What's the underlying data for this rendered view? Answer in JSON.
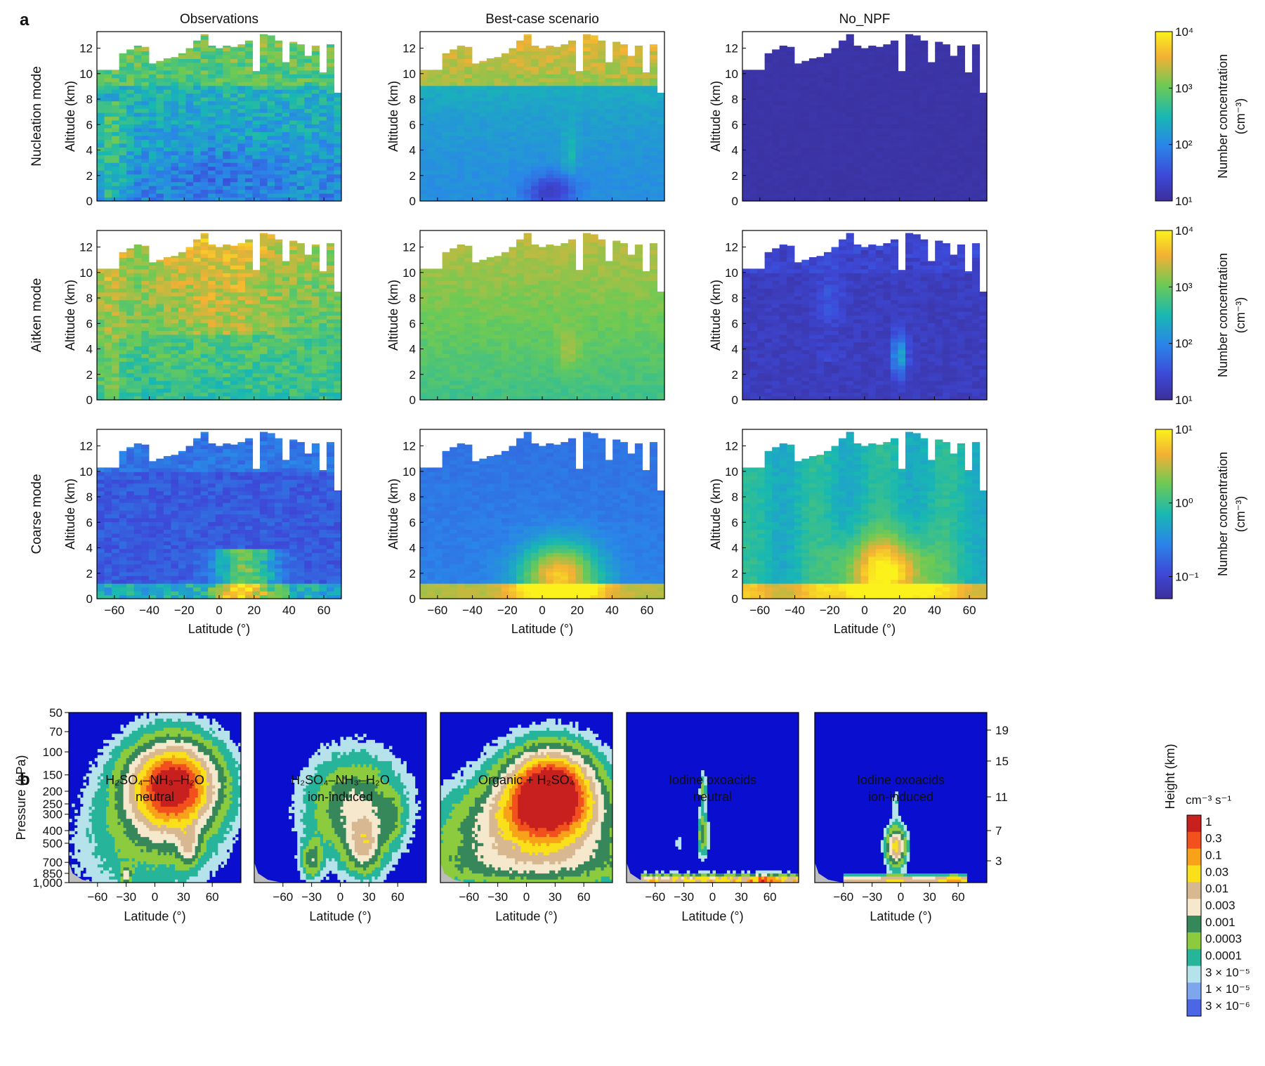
{
  "panel_a": {
    "label": "a",
    "column_titles": [
      "Observations",
      "Best-case scenario",
      "No_NPF"
    ],
    "row_titles": [
      "Nucleation mode",
      "Aitken mode",
      "Coarse mode"
    ],
    "ylabel": "Altitude (km)",
    "xlabel": "Latitude (°)",
    "colorbar_label": "Number concentration",
    "colorbar_unit": "(cm⁻³)"
  },
  "panel_b": {
    "label": "b",
    "titles": [
      [
        "H₂SO₄–NH₃–H₂O",
        "neutral"
      ],
      [
        "H₂SO₄–NH₃–H₂O",
        "ion-induced"
      ],
      [
        "Organic + H₂SO₄",
        ""
      ],
      [
        "Iodine oxoacids",
        "neutral"
      ],
      [
        "Iodine oxoacids",
        "ion-induced"
      ]
    ],
    "ylabel": "Pressure (hPa)",
    "ylabel_right": "Height (km)",
    "xlabel": "Latitude (°)",
    "colorbar_unit": "cm⁻³ s⁻¹"
  },
  "chart_data": [
    {
      "type": "heatmap",
      "panel": "a",
      "x_axis": {
        "label": "Latitude (°)",
        "range": [
          -70,
          70
        ],
        "ticks": [
          -60,
          -40,
          -20,
          0,
          20,
          40,
          60
        ]
      },
      "y_axis": {
        "label": "Altitude (km)",
        "range": [
          0,
          13.3
        ],
        "ticks": [
          0,
          2,
          4,
          6,
          8,
          10,
          12
        ]
      },
      "column_titles": [
        "Observations",
        "Best-case scenario",
        "No_NPF"
      ],
      "row_titles": [
        "Nucleation mode",
        "Aitken mode",
        "Coarse mode"
      ],
      "top_altitude_km": [
        10.3,
        10.3,
        10.3,
        11.6,
        11.9,
        12.2,
        12.1,
        10.8,
        11.0,
        11.2,
        11.3,
        11.6,
        12.0,
        12.6,
        13.1,
        12.2,
        12.0,
        12.2,
        12.1,
        12.3,
        12.6,
        10.2,
        13.1,
        13.0,
        12.6,
        10.9,
        12.5,
        12.3,
        11.4,
        12.2,
        10.1,
        12.3,
        8.5
      ],
      "row_colorbars": [
        {
          "scale": "log",
          "tick_labels": [
            "10¹",
            "10²",
            "10³",
            "10⁴"
          ],
          "range": [
            10,
            10000
          ]
        },
        {
          "scale": "log",
          "tick_labels": [
            "10¹",
            "10²",
            "10³",
            "10⁴"
          ],
          "range": [
            10,
            10000
          ]
        },
        {
          "scale": "log",
          "tick_labels": [
            "10⁻¹",
            "10⁰",
            "10¹"
          ],
          "range": [
            0.05,
            10
          ]
        }
      ]
    },
    {
      "type": "heatmap",
      "panel": "b",
      "x_axis": {
        "label": "Latitude (°)",
        "range": [
          -90,
          90
        ],
        "ticks": [
          -60,
          -30,
          0,
          30,
          60
        ]
      },
      "y_axis": {
        "label": "Pressure (hPa)",
        "scale": "log",
        "ticks": [
          50,
          70,
          100,
          150,
          200,
          250,
          300,
          400,
          500,
          700,
          850,
          1000
        ],
        "tick_labels": [
          "50",
          "70",
          "100",
          "150",
          "200",
          "250",
          "300",
          "400",
          "500",
          "700",
          "850",
          "1,000"
        ]
      },
      "y_axis_right": {
        "label": "Height (km)",
        "ticks": [
          19,
          15,
          11,
          7,
          3
        ]
      },
      "titles": [
        "H₂SO₄–NH₃–H₂O neutral",
        "H₂SO₄–NH₃–H₂O ion-induced",
        "Organic + H₂SO₄",
        "Iodine oxoacids neutral",
        "Iodine oxoacids ion-induced"
      ],
      "colorbar": {
        "unit": "cm⁻³ s⁻¹",
        "levels": [
          "1",
          "0.3",
          "0.1",
          "0.03",
          "0.01",
          "0.003",
          "0.001",
          "0.0003",
          "0.0001",
          "3 × 10⁻⁵",
          "1 × 10⁻⁵",
          "3 × 10⁻⁶"
        ],
        "colors": [
          "#c8201e",
          "#f2501c",
          "#f8a21a",
          "#fae01a",
          "#d8b890",
          "#f6e8cc",
          "#36875a",
          "#8cca3e",
          "#26b49a",
          "#b6e2ec",
          "#7ea6ec",
          "#4c66e6"
        ]
      }
    }
  ]
}
